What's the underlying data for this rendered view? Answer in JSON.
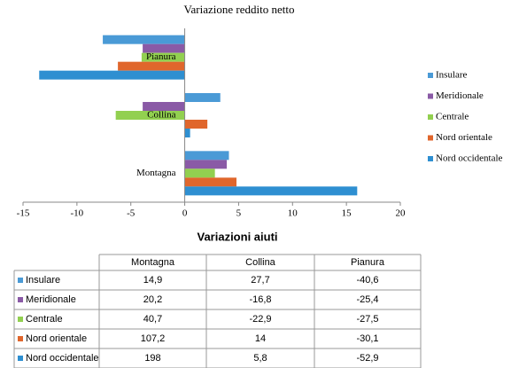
{
  "chart_data": {
    "type": "hbar",
    "title": "Variazione reddito netto",
    "categories": [
      "Montagna",
      "Collina",
      "Pianura"
    ],
    "series": [
      {
        "name": "Insulare",
        "color": "#4a9ad6",
        "values": [
          4.1,
          3.3,
          -7.6
        ]
      },
      {
        "name": "Meridionale",
        "color": "#8a5aa6",
        "values": [
          3.9,
          -3.9,
          -3.9
        ]
      },
      {
        "name": "Centrale",
        "color": "#92d050",
        "values": [
          2.8,
          -6.4,
          -4
        ]
      },
      {
        "name": "Nord orientale",
        "color": "#e0662c",
        "values": [
          4.8,
          2.1,
          -6.2
        ]
      },
      {
        "name": "Nord occidentale",
        "color": "#2e8fd1",
        "values": [
          16,
          0.5,
          -13.5
        ]
      }
    ],
    "xlim": [
      -15,
      20
    ],
    "xticks": [
      -15,
      -10,
      -5,
      0,
      5,
      10,
      15,
      20
    ],
    "legend": "right"
  },
  "table": {
    "title": "Variazioni aiuti",
    "columns": [
      "Montagna",
      "Collina",
      "Pianura"
    ],
    "rows": [
      {
        "label": "Insulare",
        "cells": [
          "14,9",
          "27,7",
          "-40,6"
        ]
      },
      {
        "label": "Meridionale",
        "cells": [
          "20,2",
          "-16,8",
          "-25,4"
        ]
      },
      {
        "label": "Centrale",
        "cells": [
          "40,7",
          "-22,9",
          "-27,5"
        ]
      },
      {
        "label": "Nord orientale",
        "cells": [
          "107,2",
          "14",
          "-30,1"
        ]
      },
      {
        "label": "Nord occidentale",
        "cells": [
          "198",
          "5,8",
          "-52,9"
        ]
      }
    ]
  }
}
